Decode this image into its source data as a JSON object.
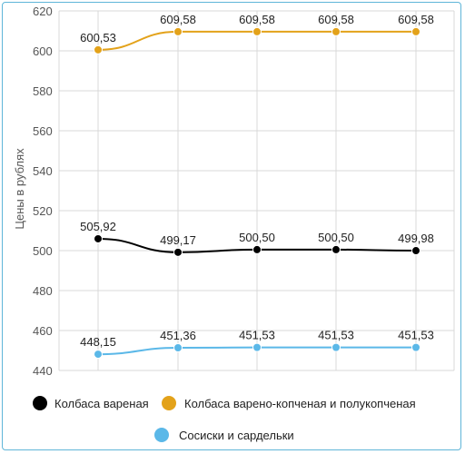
{
  "chart_data": {
    "type": "line",
    "title": "",
    "xlabel": "",
    "ylabel": "Цены в рублях",
    "ylim": [
      440,
      620
    ],
    "yticks": [
      440,
      460,
      480,
      500,
      520,
      540,
      560,
      580,
      600,
      620
    ],
    "ytick_labels": [
      "440",
      "460",
      "480",
      "500",
      "520",
      "540",
      "560",
      "580",
      "600",
      "620"
    ],
    "grid": true,
    "legend_position": "bottom",
    "x_count": 5,
    "series": [
      {
        "name": "Колбаса вареная",
        "color": "#000000",
        "values": [
          505.92,
          499.17,
          500.5,
          500.5,
          499.98
        ],
        "labels": [
          "505,92",
          "499,17",
          "500,50",
          "500,50",
          "499,98"
        ]
      },
      {
        "name": "Колбаса варено-копченая и полукопченая",
        "color": "#e3a21a",
        "values": [
          600.53,
          609.58,
          609.58,
          609.58,
          609.58
        ],
        "labels": [
          "600,53",
          "609,58",
          "609,58",
          "609,58",
          "609,58"
        ]
      },
      {
        "name": "Сосиски и сардельки",
        "color": "#5bb8e8",
        "values": [
          448.15,
          451.36,
          451.53,
          451.53,
          451.53
        ],
        "labels": [
          "448,15",
          "451,36",
          "451,53",
          "451,53",
          "451,53"
        ]
      }
    ]
  }
}
